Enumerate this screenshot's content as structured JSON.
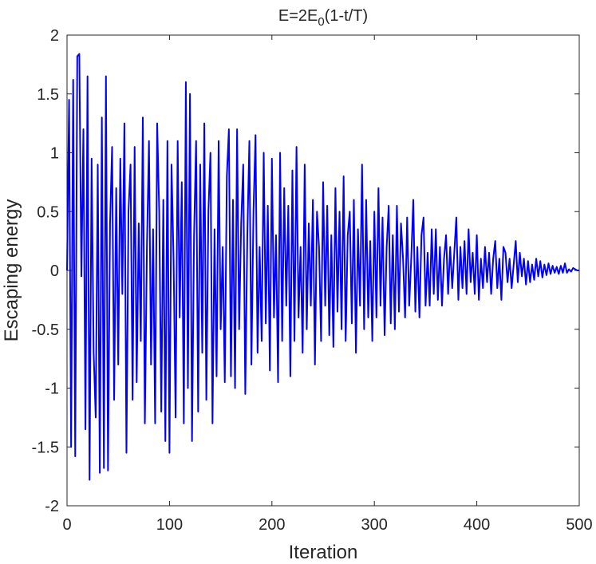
{
  "chart_data": {
    "type": "line",
    "title": {
      "main": "E=2E",
      "subscript": "0",
      "rest": "(1-t/T)"
    },
    "x_label": "Iteration",
    "y_label": "Escaping energy",
    "xlim": [
      0,
      500
    ],
    "xticks": [
      0,
      100,
      200,
      300,
      400,
      500
    ],
    "ylim": [
      -2,
      2
    ],
    "yticks": [
      -2,
      -1.5,
      -1,
      -0.5,
      0,
      0.5,
      1,
      1.5,
      2
    ],
    "grid": false,
    "series": [
      {
        "color": "#0000ff",
        "x": [
          0,
          2,
          4,
          6,
          8,
          10,
          12,
          14,
          16,
          18,
          20,
          22,
          24,
          26,
          28,
          30,
          32,
          34,
          36,
          38,
          40,
          42,
          44,
          46,
          48,
          50,
          52,
          54,
          56,
          58,
          60,
          62,
          64,
          66,
          68,
          70,
          72,
          74,
          76,
          78,
          80,
          82,
          84,
          86,
          88,
          90,
          92,
          94,
          96,
          98,
          100,
          102,
          104,
          106,
          108,
          110,
          112,
          114,
          116,
          118,
          120,
          122,
          124,
          126,
          128,
          130,
          132,
          134,
          136,
          138,
          140,
          142,
          144,
          146,
          148,
          150,
          152,
          154,
          156,
          158,
          160,
          162,
          164,
          166,
          168,
          170,
          172,
          174,
          176,
          178,
          180,
          182,
          184,
          186,
          188,
          190,
          192,
          194,
          196,
          198,
          200,
          202,
          204,
          206,
          208,
          210,
          212,
          214,
          216,
          218,
          220,
          222,
          224,
          226,
          228,
          230,
          232,
          234,
          236,
          238,
          240,
          242,
          244,
          246,
          248,
          250,
          252,
          254,
          256,
          258,
          260,
          262,
          264,
          266,
          268,
          270,
          272,
          274,
          276,
          278,
          280,
          282,
          284,
          286,
          288,
          290,
          292,
          294,
          296,
          298,
          300,
          302,
          304,
          306,
          308,
          310,
          312,
          314,
          316,
          318,
          320,
          322,
          324,
          326,
          328,
          330,
          332,
          334,
          336,
          338,
          340,
          342,
          344,
          346,
          348,
          350,
          352,
          354,
          356,
          358,
          360,
          362,
          364,
          366,
          368,
          370,
          372,
          374,
          376,
          378,
          380,
          382,
          384,
          386,
          388,
          390,
          392,
          394,
          396,
          398,
          400,
          402,
          404,
          406,
          408,
          410,
          412,
          414,
          416,
          418,
          420,
          422,
          424,
          426,
          428,
          430,
          432,
          434,
          436,
          438,
          440,
          442,
          444,
          446,
          448,
          450,
          452,
          454,
          456,
          458,
          460,
          462,
          464,
          466,
          468,
          470,
          472,
          474,
          476,
          478,
          480,
          482,
          484,
          486,
          488,
          490,
          492,
          494,
          496,
          498,
          500
        ],
        "values": [
          0,
          1.45,
          -1.5,
          1.62,
          -1.58,
          1.82,
          1.84,
          -0.05,
          1.2,
          -1.35,
          1.65,
          -1.78,
          0.95,
          -0.7,
          -1.25,
          0.9,
          -1.72,
          1.3,
          -1.68,
          1.65,
          -1.7,
          0.4,
          1.05,
          -1.1,
          0.7,
          -0.8,
          0.95,
          -0.2,
          1.25,
          -1.55,
          0.5,
          0.9,
          -1.1,
          1.05,
          -0.95,
          0.4,
          -0.6,
          1.3,
          -1.3,
          0.2,
          1.1,
          -0.8,
          0.35,
          -1.3,
          1.25,
          0.5,
          -1.2,
          0.6,
          -1.45,
          1.1,
          -1.55,
          0.9,
          0.1,
          -1.25,
          1.1,
          -0.4,
          0.75,
          -1.3,
          1.6,
          -1.0,
          1.5,
          -1.45,
          0.3,
          1.1,
          -1.2,
          0.9,
          -0.7,
          1.25,
          -1.1,
          0.5,
          1.0,
          -1.3,
          0.35,
          -0.9,
          1.1,
          -0.5,
          0.2,
          -0.95,
          0.8,
          1.2,
          -0.9,
          0.6,
          -1.0,
          1.2,
          -0.5,
          0.4,
          0.9,
          -1.05,
          0.3,
          1.1,
          -0.8,
          0.5,
          1.15,
          -0.7,
          0.2,
          -0.6,
          1.0,
          -0.45,
          0.55,
          -0.85,
          0.95,
          -0.4,
          0.3,
          -0.95,
          1.0,
          -0.6,
          0.7,
          -0.3,
          0.55,
          -0.9,
          0.85,
          -0.6,
          1.05,
          -0.4,
          0.2,
          -0.7,
          0.9,
          -0.5,
          0.4,
          -0.3,
          0.6,
          -0.8,
          0.5,
          0.2,
          -0.6,
          0.75,
          -0.3,
          0.55,
          -0.55,
          0.3,
          -0.65,
          0.7,
          -0.35,
          0.5,
          -0.5,
          0.8,
          -0.6,
          0.3,
          0.5,
          -0.45,
          0.6,
          -0.7,
          0.35,
          -0.3,
          0.9,
          -0.5,
          0.6,
          -0.4,
          0.25,
          -0.6,
          0.5,
          -0.4,
          0.7,
          -0.3,
          0.45,
          -0.55,
          0.2,
          0.55,
          -0.45,
          0.3,
          -0.5,
          0.55,
          -0.35,
          0.4,
          0.1,
          -0.4,
          0.45,
          -0.3,
          0.1,
          0.6,
          -0.35,
          0.2,
          -0.4,
          0.3,
          0.45,
          -0.3,
          0.15,
          -0.3,
          0.35,
          -0.2,
          0.35,
          -0.25,
          0.2,
          -0.3,
          0.1,
          0.3,
          -0.2,
          0.2,
          -0.15,
          0.15,
          0.45,
          -0.25,
          0.2,
          -0.15,
          0.25,
          -0.2,
          0.35,
          -0.1,
          0.15,
          -0.2,
          0.3,
          -0.25,
          0.1,
          -0.15,
          0.2,
          -0.1,
          0.15,
          -0.2,
          0.1,
          0.25,
          -0.15,
          0.1,
          -0.25,
          0.2,
          0.15,
          -0.1,
          0.1,
          -0.15,
          0.05,
          0.25,
          -0.1,
          0.15,
          -0.05,
          0.1,
          -0.12,
          0.08,
          -0.1,
          0.05,
          -0.08,
          0.1,
          -0.05,
          0.08,
          -0.06,
          0.05,
          -0.04,
          0.06,
          -0.03,
          0.04,
          -0.02,
          0.03,
          -0.03,
          0.04,
          -0.02,
          0.06,
          -0.02,
          0.01,
          -0.01,
          0.02,
          0.01,
          0,
          0
        ]
      }
    ]
  }
}
